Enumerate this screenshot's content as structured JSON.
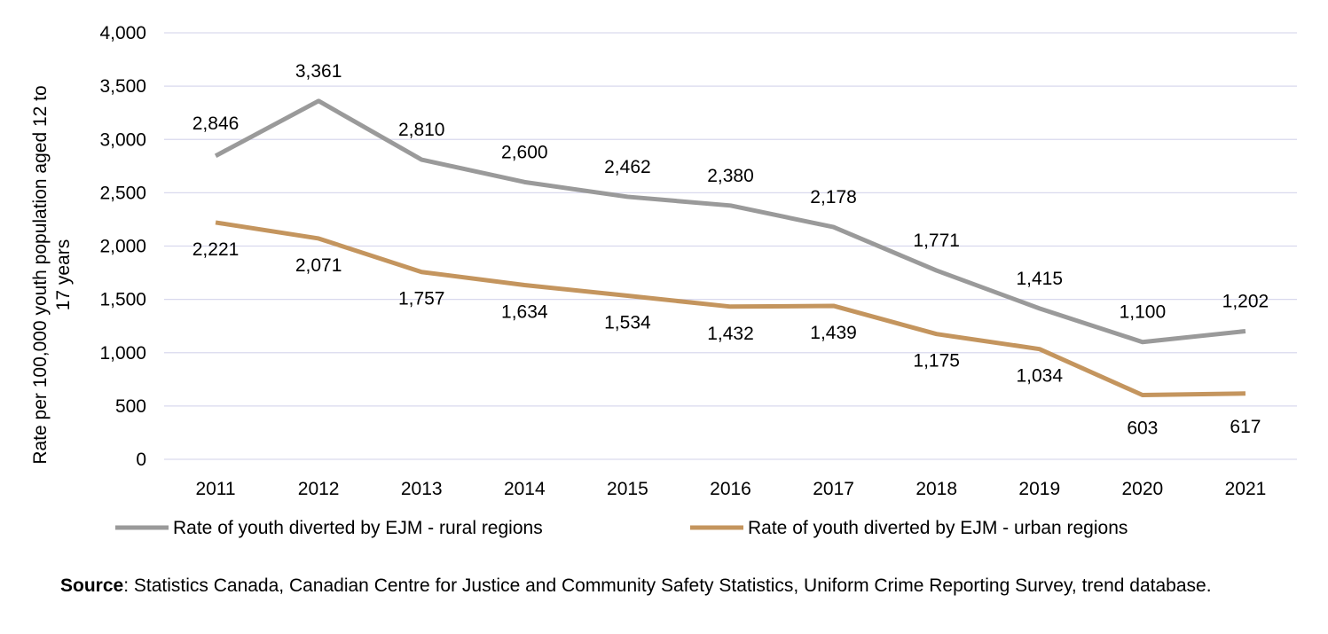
{
  "chart_data": {
    "type": "line",
    "title": "",
    "xlabel": "",
    "ylabel": "Rate per 100,000 youth population aged 12 to 17 years",
    "ylabel_lines": [
      "Rate per 100,000 youth population aged 12 to",
      "17 years"
    ],
    "ylim": [
      0,
      4000
    ],
    "yticks": [
      "0",
      "500",
      "1,000",
      "1,500",
      "2,000",
      "2,500",
      "3,000",
      "3,500",
      "4,000"
    ],
    "ytick_values": [
      0,
      500,
      1000,
      1500,
      2000,
      2500,
      3000,
      3500,
      4000
    ],
    "grid": true,
    "legend": "bottom",
    "categories": [
      "2011",
      "2012",
      "2013",
      "2014",
      "2015",
      "2016",
      "2017",
      "2018",
      "2019",
      "2020",
      "2021"
    ],
    "series": [
      {
        "name": "Rate of youth diverted by EJM - rural regions",
        "color": "#9a9a9a",
        "values": [
          2846,
          3361,
          2810,
          2600,
          2462,
          2380,
          2178,
          1771,
          1415,
          1100,
          1202
        ],
        "labels": [
          "2,846",
          "3,361",
          "2,810",
          "2,600",
          "2,462",
          "2,380",
          "2,178",
          "1,771",
          "1,415",
          "1,100",
          "1,202"
        ]
      },
      {
        "name": "Rate of youth diverted by EJM - urban regions",
        "color": "#c4955e",
        "values": [
          2221,
          2071,
          1757,
          1634,
          1534,
          1432,
          1439,
          1175,
          1034,
          603,
          617
        ],
        "labels": [
          "2,221",
          "2,071",
          "1,757",
          "1,634",
          "1,534",
          "1,432",
          "1,439",
          "1,175",
          "1,034",
          "603",
          "617"
        ]
      }
    ]
  },
  "source": {
    "label": "Source",
    "text": ": Statistics Canada, Canadian Centre for Justice and Community Safety Statistics, Uniform Crime Reporting Survey, trend database."
  }
}
